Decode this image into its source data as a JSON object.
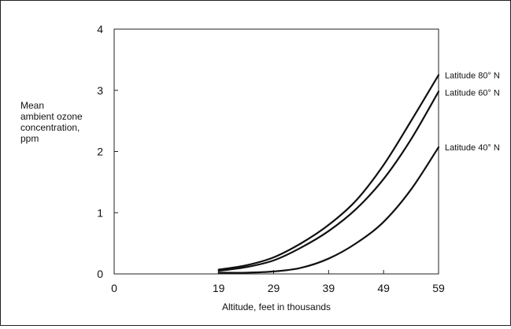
{
  "chart_data": {
    "type": "line",
    "title": "",
    "xlabel": "Altitude, feet in thousands",
    "ylabel_lines": [
      "Mean",
      "ambient ozone",
      "concentration,",
      "ppm"
    ],
    "xlim": [
      0,
      59
    ],
    "ylim": [
      0,
      4
    ],
    "x_ticks": [
      0,
      19,
      29,
      39,
      49,
      59
    ],
    "y_ticks": [
      0,
      1,
      2,
      3,
      4
    ],
    "grid": false,
    "series": [
      {
        "name": "Latitude 80° N",
        "x": [
          19,
          24,
          29,
          34,
          39,
          44,
          49,
          54,
          59
        ],
        "y": [
          0.07,
          0.14,
          0.27,
          0.5,
          0.8,
          1.2,
          1.78,
          2.5,
          3.25
        ]
      },
      {
        "name": "Latitude 60° N",
        "x": [
          19,
          24,
          29,
          34,
          39,
          44,
          49,
          54,
          59
        ],
        "y": [
          0.05,
          0.11,
          0.22,
          0.43,
          0.7,
          1.06,
          1.55,
          2.2,
          2.98
        ]
      },
      {
        "name": "Latitude 40° N",
        "x": [
          19,
          24,
          29,
          34,
          39,
          44,
          49,
          54,
          59
        ],
        "y": [
          0.02,
          0.02,
          0.04,
          0.1,
          0.25,
          0.5,
          0.85,
          1.38,
          2.07
        ]
      }
    ]
  }
}
